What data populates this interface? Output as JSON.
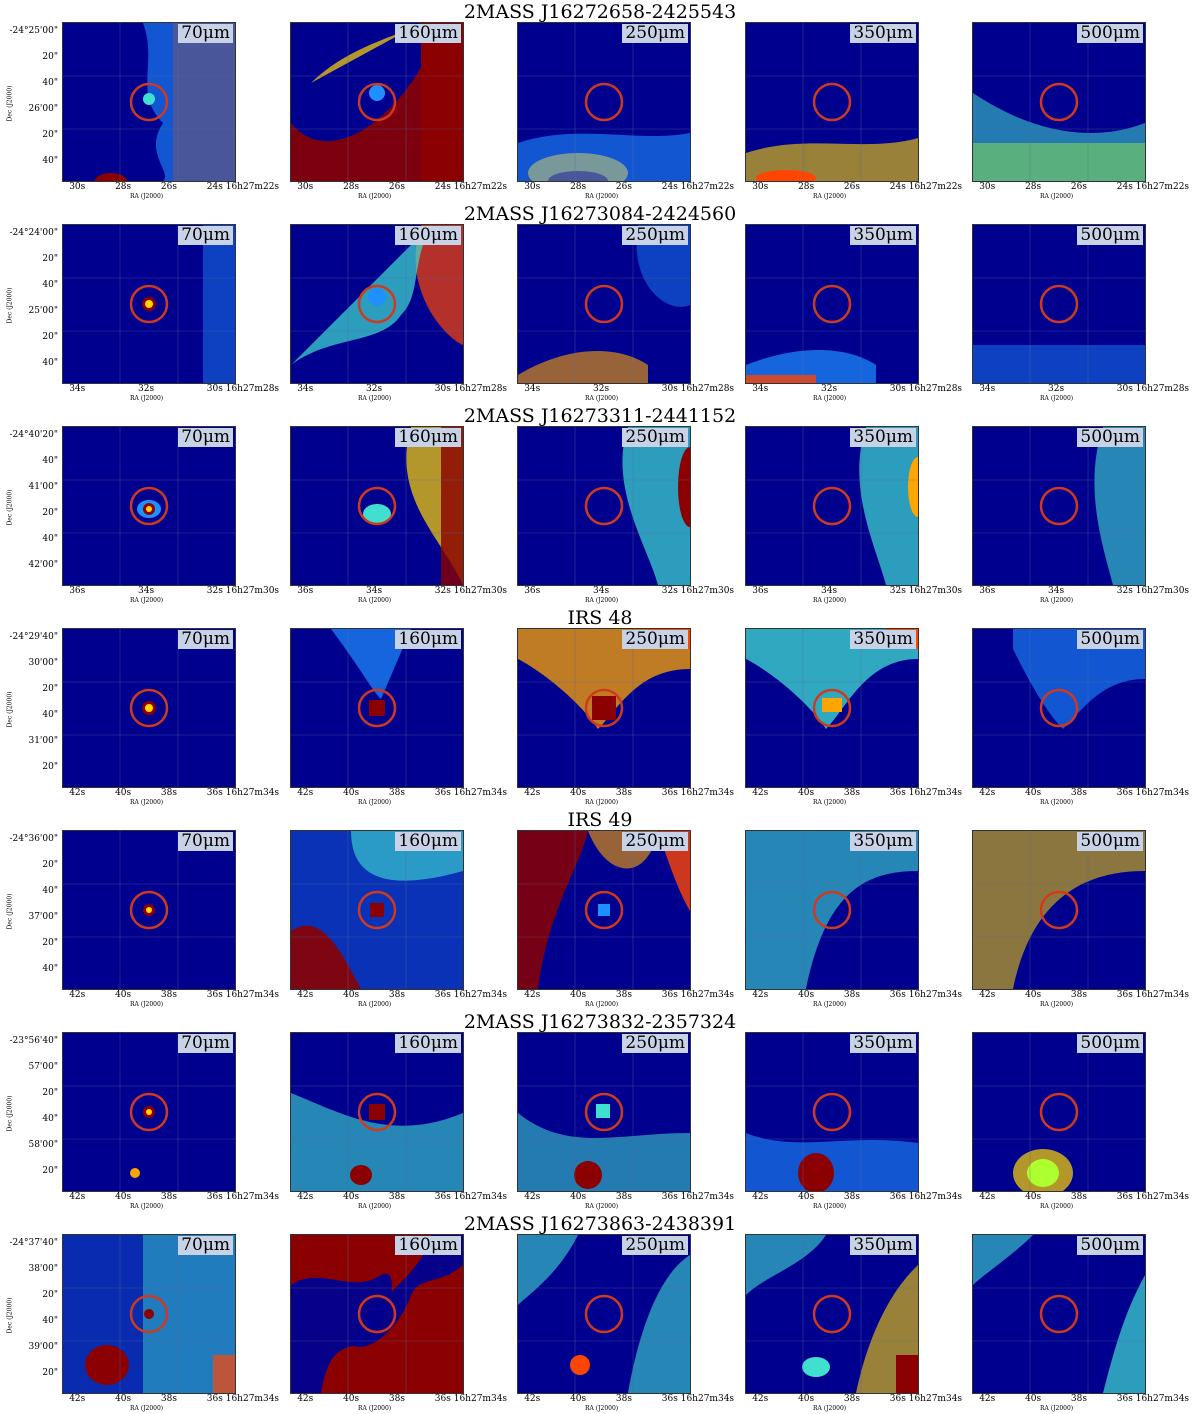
{
  "bands": [
    "70μm",
    "160μm",
    "250μm",
    "350μm",
    "500μm"
  ],
  "xlabel": "RA (J2000)",
  "ylabel": "Dec (J2000)",
  "rows": [
    {
      "title": "2MASS J16272658-2425543",
      "yticks": [
        "-24°25'00\"",
        "20\"",
        "40\"",
        "26'00\"",
        "20\"",
        "40\""
      ],
      "xticks": [
        "30s",
        "28s",
        "26s",
        "24s 16h27m22s"
      ]
    },
    {
      "title": "2MASS J16273084-2424560",
      "yticks": [
        "-24°24'00\"",
        "20\"",
        "40\"",
        "25'00\"",
        "20\"",
        "40\""
      ],
      "xticks": [
        "34s",
        "32s",
        "30s 16h27m28s"
      ]
    },
    {
      "title": "2MASS J16273311-2441152",
      "yticks": [
        "-24°40'20\"",
        "40\"",
        "41'00\"",
        "20\"",
        "40\"",
        "42'00\""
      ],
      "xticks": [
        "36s",
        "34s",
        "32s 16h27m30s"
      ]
    },
    {
      "title": "IRS 48",
      "yticks": [
        "-24°29'40\"",
        "30'00\"",
        "20\"",
        "40\"",
        "31'00\"",
        "20\""
      ],
      "xticks": [
        "42s",
        "40s",
        "38s",
        "36s 16h27m34s"
      ]
    },
    {
      "title": "IRS 49",
      "yticks": [
        "-24°36'00\"",
        "20\"",
        "40\"",
        "37'00\"",
        "20\"",
        "40\""
      ],
      "xticks": [
        "42s",
        "40s",
        "38s",
        "36s 16h27m34s"
      ]
    },
    {
      "title": "2MASS J16273832-2357324",
      "yticks": [
        "-23°56'40\"",
        "57'00\"",
        "20\"",
        "40\"",
        "58'00\"",
        "20\""
      ],
      "xticks": [
        "42s",
        "40s",
        "38s",
        "36s 16h27m34s"
      ]
    },
    {
      "title": "2MASS J16273863-2438391",
      "yticks": [
        "-24°37'40\"",
        "38'00\"",
        "20\"",
        "40\"",
        "39'00\"",
        "20\""
      ],
      "xticks": [
        "42s",
        "40s",
        "38s",
        "36s 16h27m34s"
      ]
    }
  ]
}
